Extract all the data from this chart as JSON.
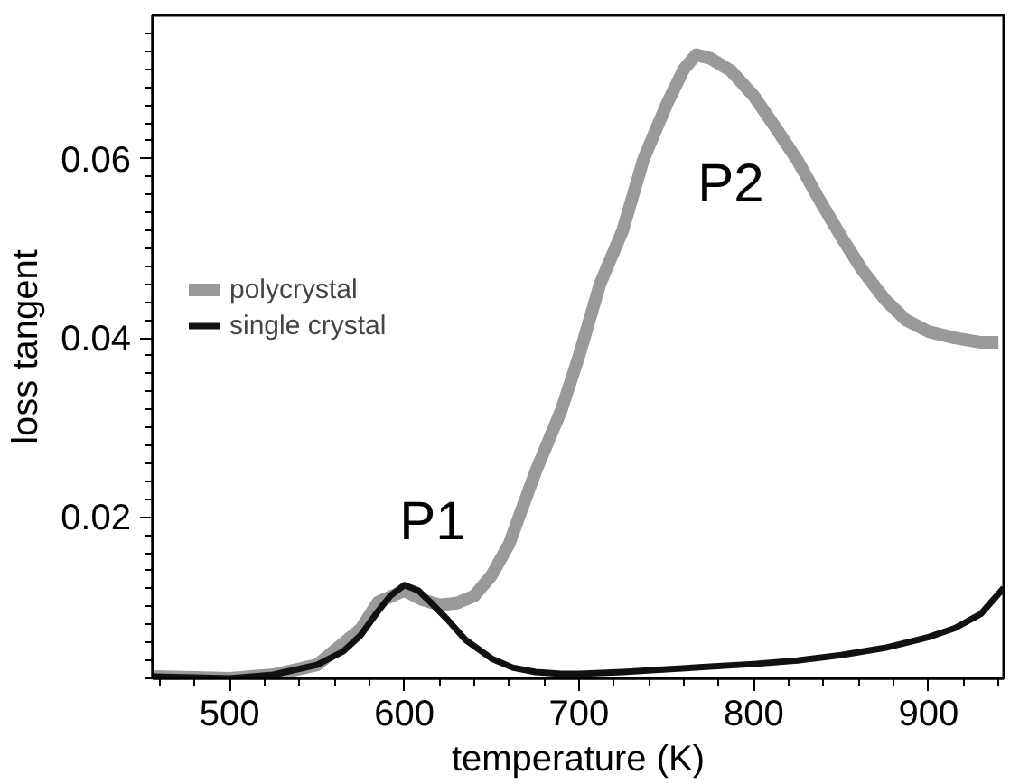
{
  "chart_data": {
    "type": "line",
    "xlabel": "temperature (K)",
    "ylabel": "loss tangent",
    "xlim": [
      456,
      943
    ],
    "ylim": [
      0.002,
      0.076
    ],
    "xticks": [
      500,
      600,
      700,
      800,
      900
    ],
    "yticks": [
      0.02,
      0.04,
      0.06
    ],
    "grid": false,
    "legend": "top left",
    "line_style": "solid",
    "annotations": [
      "P1",
      "P2"
    ],
    "series": [
      {
        "name": "polycrystal",
        "color": "#999999",
        "x": [
          456,
          480,
          500,
          525,
          550,
          575,
          585,
          600,
          610,
          620,
          630,
          640,
          650,
          660,
          675,
          690,
          700,
          712,
          725,
          737,
          750,
          760,
          767,
          775,
          787,
          800,
          812,
          825,
          837,
          850,
          862,
          875,
          887,
          900,
          915,
          930,
          940
        ],
        "values": [
          0.0022,
          0.0021,
          0.002,
          0.0024,
          0.0035,
          0.0075,
          0.0105,
          0.0118,
          0.0108,
          0.0102,
          0.0104,
          0.0112,
          0.0135,
          0.017,
          0.025,
          0.032,
          0.038,
          0.046,
          0.052,
          0.06,
          0.066,
          0.07,
          0.0716,
          0.0712,
          0.0698,
          0.067,
          0.0636,
          0.0598,
          0.0556,
          0.0513,
          0.0476,
          0.0443,
          0.042,
          0.0407,
          0.04,
          0.0395,
          0.0395
        ]
      },
      {
        "name": "single crystal",
        "color": "#111111",
        "x": [
          456,
          480,
          500,
          525,
          550,
          565,
          575,
          585,
          592,
          600,
          608,
          615,
          625,
          635,
          650,
          662,
          675,
          690,
          700,
          725,
          750,
          775,
          800,
          825,
          850,
          875,
          900,
          915,
          930,
          943
        ],
        "values": [
          0.0022,
          0.0021,
          0.002,
          0.0024,
          0.0035,
          0.005,
          0.0068,
          0.0095,
          0.0112,
          0.0124,
          0.0118,
          0.0105,
          0.0085,
          0.0063,
          0.0042,
          0.0032,
          0.0027,
          0.0025,
          0.0025,
          0.0027,
          0.003,
          0.0033,
          0.0036,
          0.004,
          0.0046,
          0.0054,
          0.0066,
          0.0076,
          0.0092,
          0.0121
        ]
      }
    ]
  }
}
